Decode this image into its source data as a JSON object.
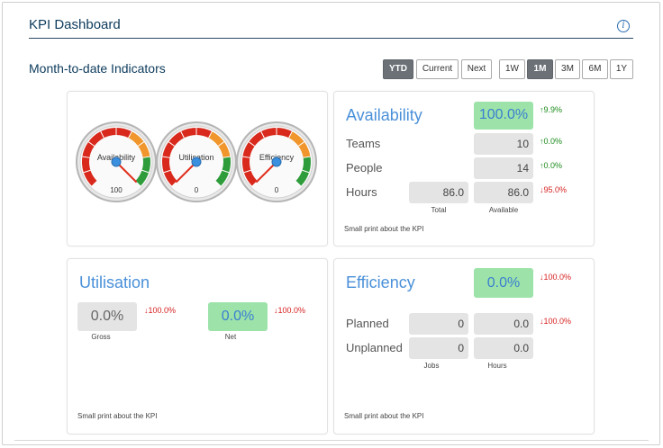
{
  "header": {
    "title": "KPI Dashboard",
    "info_icon": "info-icon"
  },
  "subtitle": "Month-to-date Indicators",
  "period_buttons": [
    {
      "label": "YTD",
      "active": true
    },
    {
      "label": "Current",
      "active": false
    },
    {
      "label": "Next",
      "active": false
    }
  ],
  "range_buttons": [
    {
      "label": "1W",
      "active": false
    },
    {
      "label": "1M",
      "active": true
    },
    {
      "label": "3M",
      "active": false
    },
    {
      "label": "6M",
      "active": false
    },
    {
      "label": "1Y",
      "active": false
    }
  ],
  "gauges": [
    {
      "label": "Availability",
      "value": 100,
      "value_text": "100",
      "min": 0,
      "max": 100
    },
    {
      "label": "Utilisation",
      "value": 0,
      "value_text": "0",
      "min": 0,
      "max": 100
    },
    {
      "label": "Efficiency",
      "value": 0,
      "value_text": "0",
      "min": 0,
      "max": 100
    }
  ],
  "availability": {
    "title": "Availability",
    "main_value": "100.0%",
    "main_change": "↑9.9%",
    "teams_label": "Teams",
    "teams_value": "10",
    "teams_change": "↑0.0%",
    "people_label": "People",
    "people_value": "14",
    "people_change": "↑0.0%",
    "hours_label": "Hours",
    "hours_total": "86.0",
    "hours_available": "86.0",
    "hours_change": "↓95.0%",
    "total_caption": "Total",
    "available_caption": "Available",
    "small_print": "Small print about the KPI"
  },
  "utilisation": {
    "title": "Utilisation",
    "gross_value": "0.0%",
    "gross_change": "↓100.0%",
    "gross_caption": "Gross",
    "net_value": "0.0%",
    "net_change": "↓100.0%",
    "net_caption": "Net",
    "small_print": "Small print about the KPI"
  },
  "efficiency": {
    "title": "Efficiency",
    "main_value": "0.0%",
    "main_change": "↓100.0%",
    "planned_label": "Planned",
    "planned_jobs": "0",
    "planned_hours": "0.0",
    "planned_change": "↓100.0%",
    "unplanned_label": "Unplanned",
    "unplanned_jobs": "0",
    "unplanned_hours": "0.0",
    "jobs_caption": "Jobs",
    "hours_caption": "Hours",
    "small_print": "Small print about the KPI"
  },
  "colors": {
    "accent": "#4a90d9",
    "header": "#0d3b5c",
    "good": "#9de3a9",
    "up": "#1b8a1b",
    "down": "#d62020",
    "gauge_red": "#d9291c",
    "gauge_orange": "#f0962c",
    "gauge_green": "#2e9c3a"
  }
}
